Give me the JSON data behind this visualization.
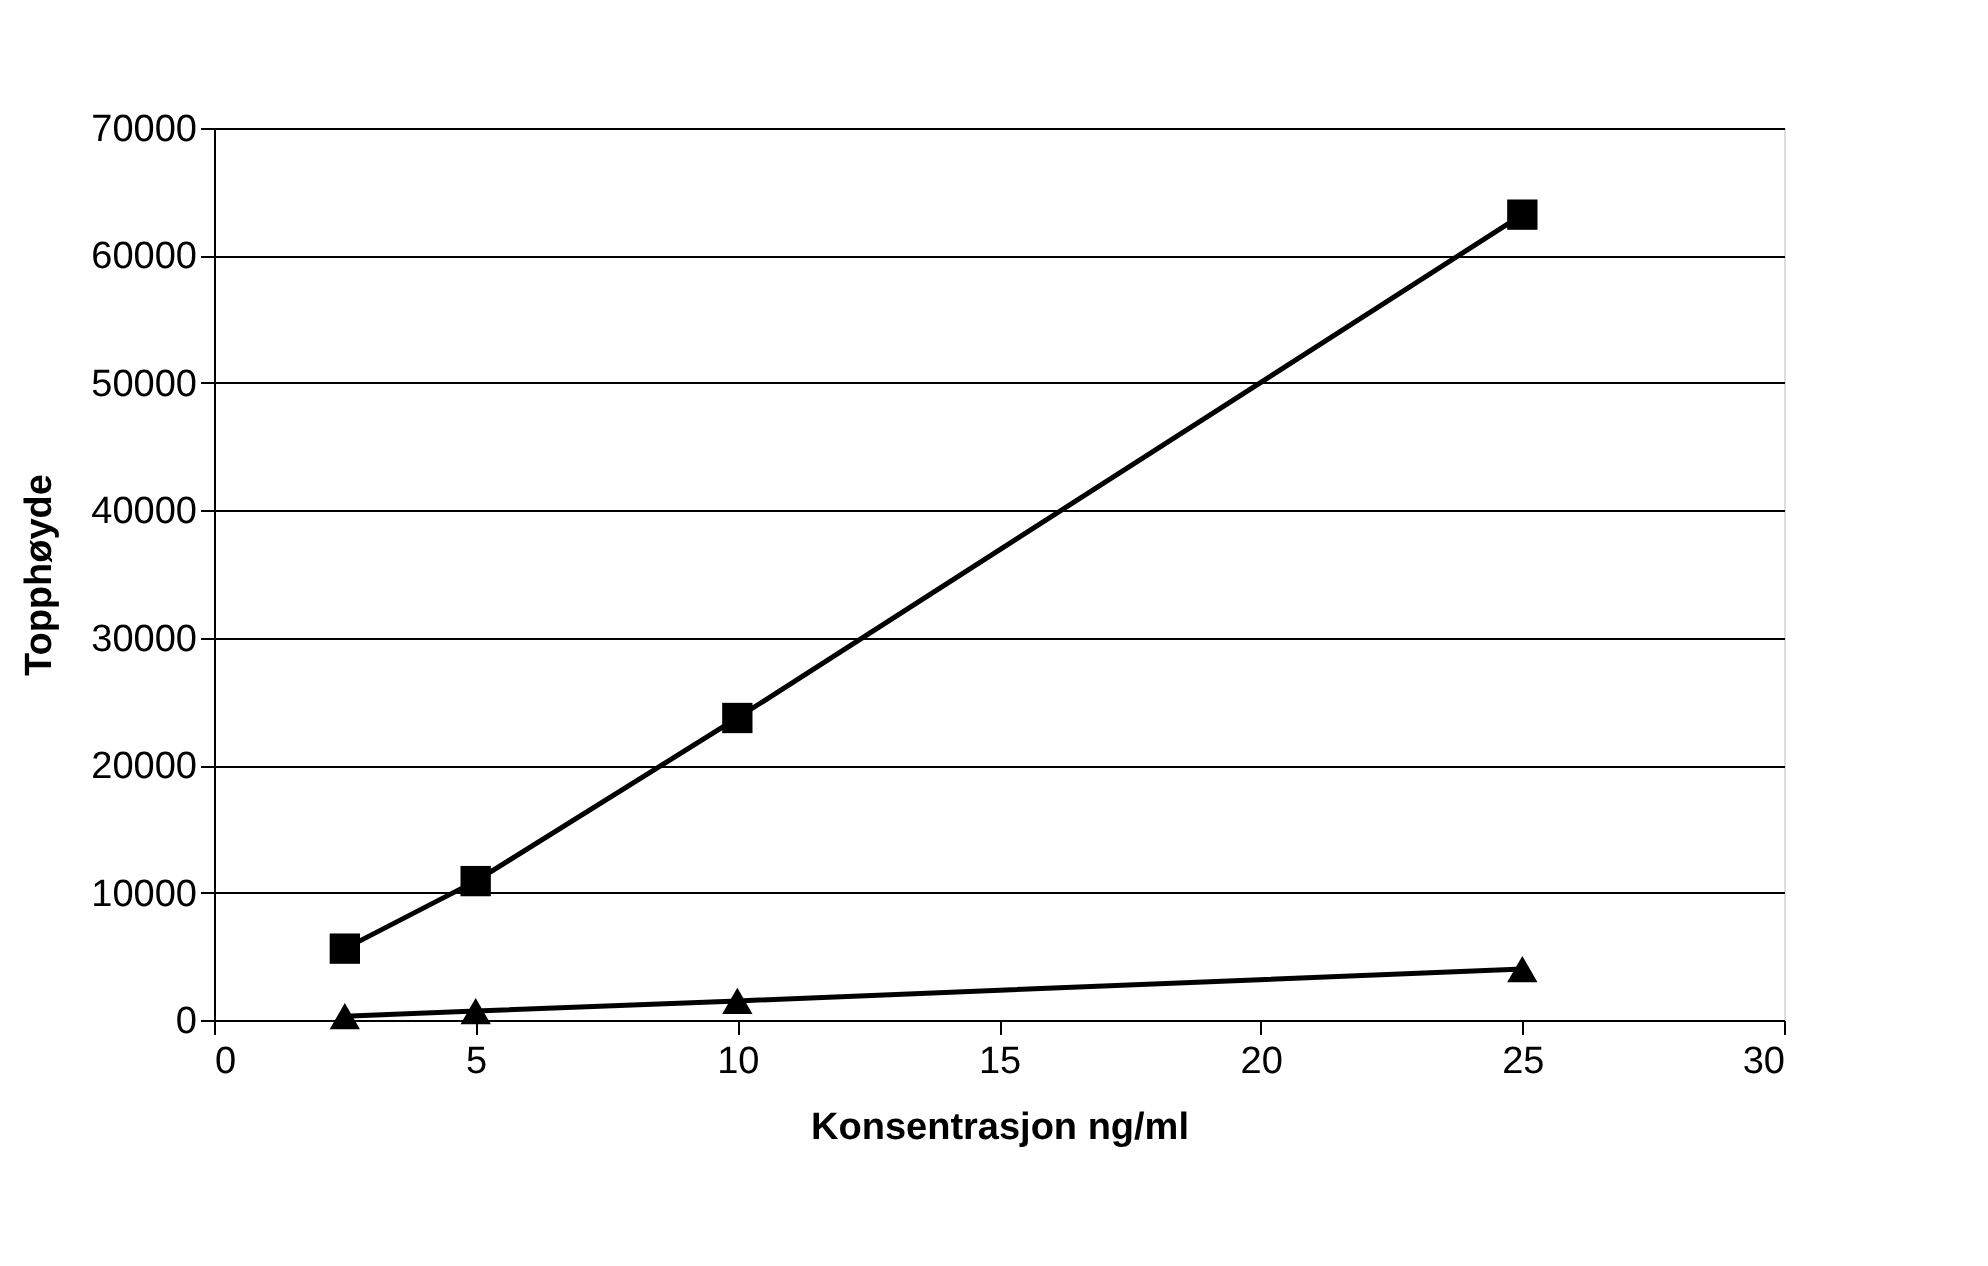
{
  "chart_data": {
    "type": "line",
    "xlabel": "Konsentrasjon ng/ml",
    "ylabel": "Topphøyde",
    "x": [
      2.5,
      5,
      10,
      25
    ],
    "series": [
      {
        "color": "#000000",
        "marker": "square",
        "values": [
          5600,
          10900,
          23700,
          63200
        ]
      },
      {
        "color": "#000000",
        "marker": "triangle",
        "values": [
          300,
          700,
          1500,
          4000
        ]
      }
    ],
    "xlim": [
      0,
      30
    ],
    "xticks": [
      0,
      5,
      10,
      15,
      20,
      25,
      30
    ],
    "ylim": [
      0,
      70000
    ],
    "yticks": [
      0,
      10000,
      20000,
      30000,
      40000,
      50000,
      60000,
      70000
    ],
    "grid": "y",
    "line_style": "solid"
  }
}
